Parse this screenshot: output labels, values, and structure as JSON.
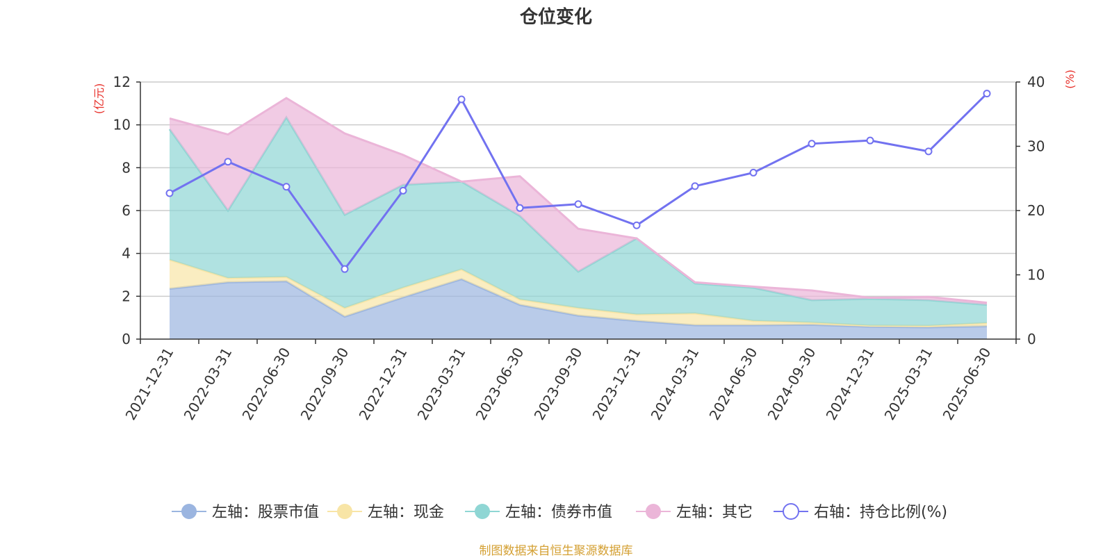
{
  "title": "仓位变化",
  "source": "制图数据来自恒生聚源数据库",
  "chart_data": {
    "type": "area",
    "title": "仓位变化",
    "x": [
      "2021-12-31",
      "2022-03-31",
      "2022-06-30",
      "2022-09-30",
      "2022-12-31",
      "2023-03-31",
      "2023-06-30",
      "2023-09-30",
      "2023-12-31",
      "2024-03-31",
      "2024-06-30",
      "2024-09-30",
      "2024-12-31",
      "2025-03-31",
      "2025-06-30"
    ],
    "left_axis": {
      "unit": "(亿元)",
      "ylim": [
        0,
        12
      ],
      "ticks": [
        0,
        2,
        4,
        6,
        8,
        10,
        12
      ]
    },
    "right_axis": {
      "unit": "(%)",
      "ylim": [
        0,
        40
      ],
      "ticks": [
        0,
        10,
        20,
        30,
        40
      ]
    },
    "stacked": true,
    "grid": true,
    "legend_position": "bottom",
    "series": [
      {
        "name": "左轴：股票市值",
        "axis": "left",
        "type": "area",
        "color": "#9bb5e0",
        "values": [
          2.35,
          2.65,
          2.7,
          1.05,
          1.95,
          2.8,
          1.6,
          1.1,
          0.85,
          0.65,
          0.65,
          0.67,
          0.58,
          0.55,
          0.6
        ]
      },
      {
        "name": "左轴：现金",
        "axis": "left",
        "type": "area",
        "color": "#f8e5a6",
        "values": [
          1.35,
          0.2,
          0.2,
          0.4,
          0.45,
          0.45,
          0.25,
          0.35,
          0.3,
          0.55,
          0.2,
          0.1,
          0.05,
          0.07,
          0.15
        ]
      },
      {
        "name": "左轴：债券市值",
        "axis": "left",
        "type": "area",
        "color": "#8fd6d4",
        "values": [
          6.1,
          3.15,
          7.45,
          4.35,
          4.8,
          4.1,
          3.9,
          1.7,
          3.55,
          1.4,
          1.55,
          1.05,
          1.25,
          1.2,
          0.85
        ]
      },
      {
        "name": "左轴：其它",
        "axis": "left",
        "type": "area",
        "color": "#ebb5d8",
        "values": [
          0.5,
          3.55,
          0.9,
          3.8,
          1.4,
          0.0,
          1.85,
          2.0,
          0.0,
          0.05,
          0.05,
          0.45,
          0.05,
          0.15,
          0.1
        ]
      },
      {
        "name": "右轴：持仓比例(%)",
        "axis": "right",
        "type": "line",
        "color": "#7272f0",
        "values": [
          22.7,
          27.6,
          23.7,
          10.9,
          23.1,
          37.3,
          20.4,
          21.0,
          17.7,
          23.8,
          25.9,
          30.4,
          30.9,
          29.2,
          38.2
        ]
      }
    ]
  }
}
